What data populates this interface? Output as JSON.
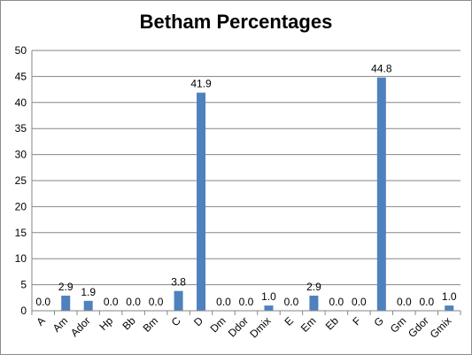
{
  "chart_data": {
    "type": "bar",
    "title": "Betham Percentages",
    "xlabel": "",
    "ylabel": "",
    "categories": [
      "A",
      "Am",
      "Ador",
      "Hp",
      "Bb",
      "Bm",
      "C",
      "D",
      "Dm",
      "Ddor",
      "Dmix",
      "E",
      "Em",
      "Eb",
      "F",
      "G",
      "Gm",
      "Gdor",
      "Gmix"
    ],
    "values": [
      0.0,
      2.9,
      1.9,
      0.0,
      0.0,
      0.0,
      3.8,
      41.9,
      0.0,
      0.0,
      1.0,
      0.0,
      2.9,
      0.0,
      0.0,
      44.8,
      0.0,
      0.0,
      1.0
    ],
    "value_labels": [
      "0.0",
      "2.9",
      "1.9",
      "0.0",
      "0.0",
      "0.0",
      "3.8",
      "41.9",
      "0.0",
      "0.0",
      "1.0",
      "0.0",
      "2.9",
      "0.0",
      "0.0",
      "44.8",
      "0.0",
      "0.0",
      "1.0"
    ],
    "ylim": [
      0,
      50
    ],
    "yticks": [
      0,
      5,
      10,
      15,
      20,
      25,
      30,
      35,
      40,
      45,
      50
    ],
    "grid": true,
    "legend": "none",
    "bar_color": "#4f81bd",
    "grid_color": "#868686"
  }
}
